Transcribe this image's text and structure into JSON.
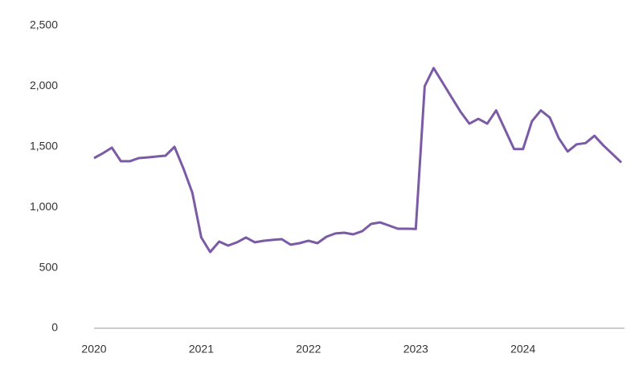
{
  "chart_data": {
    "type": "line",
    "categories": [
      "2020",
      null,
      null,
      null,
      null,
      null,
      null,
      null,
      null,
      null,
      null,
      null,
      "2021",
      null,
      null,
      null,
      null,
      null,
      null,
      null,
      null,
      null,
      null,
      null,
      "2022",
      null,
      null,
      null,
      null,
      null,
      null,
      null,
      null,
      null,
      null,
      null,
      "2023",
      null,
      null,
      null,
      null,
      null,
      null,
      null,
      null,
      null,
      null,
      null,
      "2024",
      null,
      null,
      null,
      null,
      null,
      null,
      null,
      null,
      null,
      null,
      null
    ],
    "series": [
      {
        "color": "#7b5aa6",
        "values": [
          1406,
          1446,
          1492,
          1380,
          1380,
          1406,
          1412,
          1419,
          1426,
          1499,
          1320,
          1120,
          750,
          630,
          716,
          683,
          710,
          750,
          710,
          723,
          730,
          736,
          690,
          703,
          723,
          703,
          756,
          783,
          789,
          776,
          802,
          862,
          875,
          849,
          822,
          822,
          820,
          2000,
          2150,
          2030,
          1910,
          1790,
          1690,
          1730,
          1690,
          1800,
          1640,
          1480,
          1480,
          1710,
          1800,
          1740,
          1570,
          1460,
          1520,
          1530,
          1590,
          1510,
          1440,
          1370
        ]
      }
    ],
    "ylim": [
      0,
      2500
    ],
    "yticks": [
      0,
      500,
      {
        "value": 1000,
        "label": "1,000"
      },
      {
        "value": 1500,
        "label": "1,500"
      },
      {
        "value": 2000,
        "label": "2,000"
      },
      {
        "value": 2500,
        "label": "2,500"
      }
    ],
    "grid": false
  }
}
